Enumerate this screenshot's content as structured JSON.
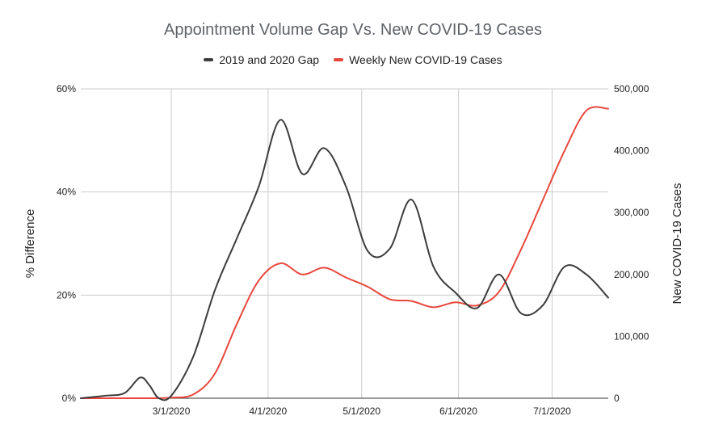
{
  "chart_data": {
    "type": "line",
    "title": "Appointment Volume Gap Vs. New COVID-19 Cases",
    "xlabel": "",
    "ylabel": "% Difference",
    "y2label": "New COVID-19 Cases",
    "x_ticks": [
      "3/1/2020",
      "4/1/2020",
      "5/1/2020",
      "6/1/2020",
      "7/1/2020"
    ],
    "y_ticks": [
      "0%",
      "20%",
      "40%",
      "60%"
    ],
    "y2_ticks": [
      "0",
      "100,000",
      "200,000",
      "300,000",
      "400,000",
      "500,000"
    ],
    "ylim": [
      0,
      60
    ],
    "y2lim": [
      0,
      500000
    ],
    "xlim": [
      "2020-02-01",
      "2020-07-19"
    ],
    "grid": true,
    "legend_position": "top",
    "series": [
      {
        "name": "2019 and 2020 Gap",
        "axis": "left",
        "color": "#3c3c3c",
        "x": [
          "2020-02-01",
          "2020-02-09",
          "2020-02-15",
          "2020-02-20",
          "2020-02-23",
          "2020-02-26",
          "2020-03-01",
          "2020-03-08",
          "2020-03-15",
          "2020-03-22",
          "2020-03-29",
          "2020-04-05",
          "2020-04-12",
          "2020-04-19",
          "2020-04-26",
          "2020-05-03",
          "2020-05-10",
          "2020-05-17",
          "2020-05-24",
          "2020-05-31",
          "2020-06-07",
          "2020-06-14",
          "2020-06-21",
          "2020-06-28",
          "2020-07-05",
          "2020-07-12",
          "2020-07-19"
        ],
        "values": [
          0,
          0.5,
          1,
          4,
          2.5,
          0,
          0.5,
          8,
          21,
          31,
          41,
          54,
          43.5,
          48.5,
          41,
          28.5,
          29,
          38.5,
          25.5,
          20.5,
          17.5,
          24,
          16.5,
          18,
          25.5,
          24,
          19.5
        ]
      },
      {
        "name": "Weekly New COVID-19 Cases",
        "axis": "right",
        "color": "#e8473d",
        "x": [
          "2020-02-01",
          "2020-02-09",
          "2020-02-16",
          "2020-02-23",
          "2020-03-01",
          "2020-03-08",
          "2020-03-15",
          "2020-03-22",
          "2020-03-29",
          "2020-04-05",
          "2020-04-12",
          "2020-04-19",
          "2020-04-26",
          "2020-05-03",
          "2020-05-10",
          "2020-05-17",
          "2020-05-24",
          "2020-05-31",
          "2020-06-07",
          "2020-06-14",
          "2020-06-21",
          "2020-06-28",
          "2020-07-05",
          "2020-07-12",
          "2020-07-19"
        ],
        "values": [
          0,
          0,
          0,
          0,
          1000,
          6000,
          40000,
          120000,
          190000,
          218000,
          200000,
          211000,
          195000,
          180000,
          160000,
          157000,
          147000,
          155000,
          150000,
          172000,
          240000,
          320000,
          400000,
          465000,
          468000
        ]
      }
    ]
  }
}
